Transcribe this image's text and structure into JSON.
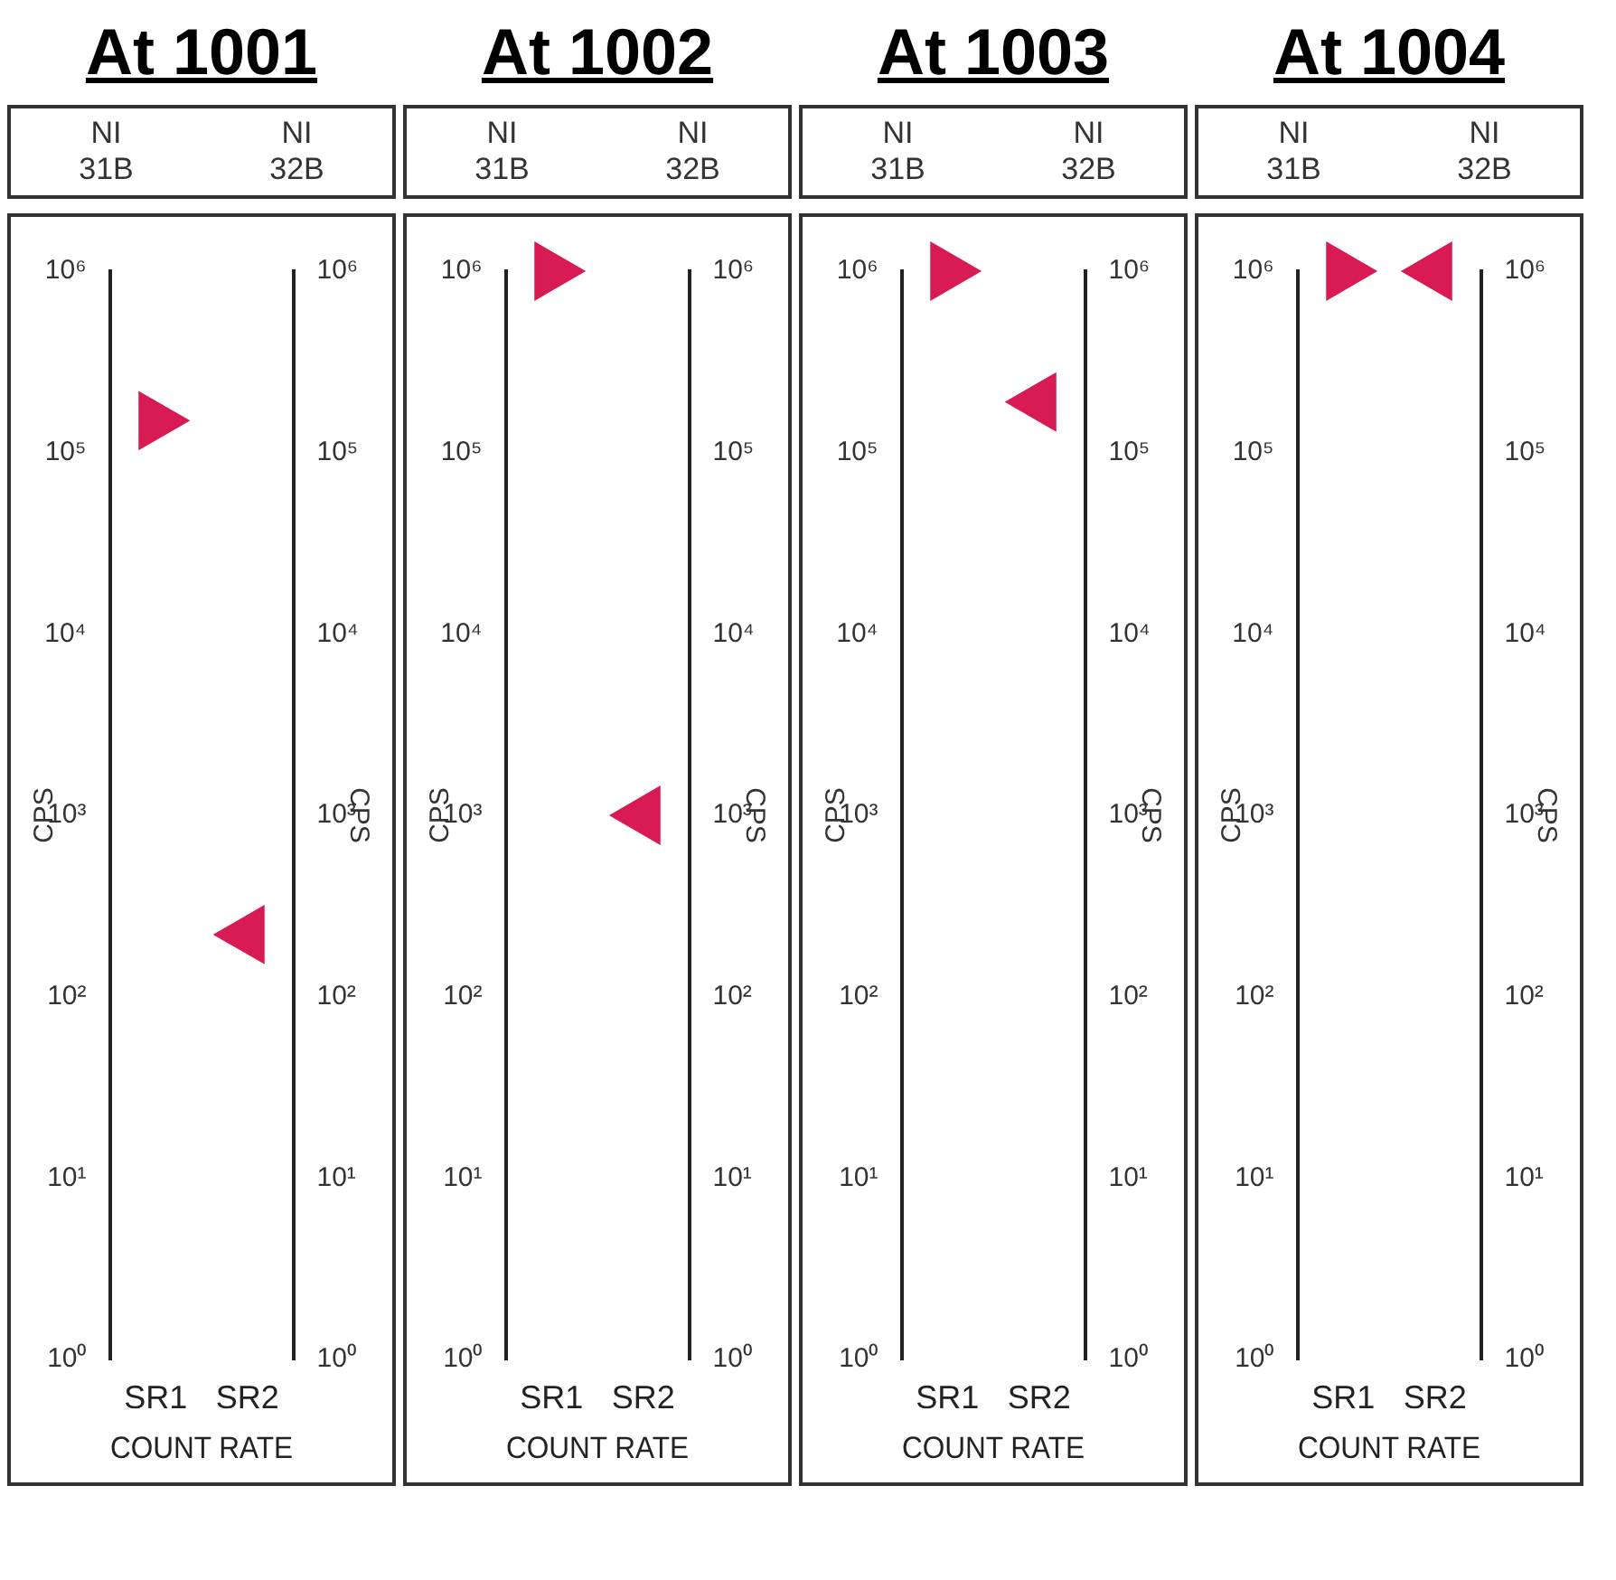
{
  "chart_data": [
    {
      "type": "scatter",
      "title": "At 1001",
      "annotations": [
        "NI 31B",
        "NI 32B"
      ],
      "categories": [
        "SR1",
        "SR2"
      ],
      "xlabel": "COUNT RATE",
      "ylabel": "CPS",
      "y2label": "CPS",
      "log": true,
      "ylim": [
        1,
        1000000
      ],
      "yticks": [
        {
          "value": 1,
          "label": "10⁰"
        },
        {
          "value": 10,
          "label": "10¹"
        },
        {
          "value": 100,
          "label": "10²"
        },
        {
          "value": 1000,
          "label": "10³"
        },
        {
          "value": 10000,
          "label": "10⁴"
        },
        {
          "value": 100000,
          "label": "10⁵"
        },
        {
          "value": 1000000,
          "label": "10⁶"
        }
      ],
      "marker": "triangle",
      "series": [
        {
          "color": "#d81b52",
          "values": [
            150000,
            220
          ]
        }
      ]
    },
    {
      "type": "scatter",
      "title": "At 1002",
      "annotations": [
        "NI 31B",
        "NI 32B"
      ],
      "categories": [
        "SR1",
        "SR2"
      ],
      "xlabel": "COUNT RATE",
      "ylabel": "CPS",
      "y2label": "CPS",
      "log": true,
      "ylim": [
        1,
        1000000
      ],
      "yticks": [
        {
          "value": 1,
          "label": "10⁰"
        },
        {
          "value": 10,
          "label": "10¹"
        },
        {
          "value": 100,
          "label": "10²"
        },
        {
          "value": 1000,
          "label": "10³"
        },
        {
          "value": 10000,
          "label": "10⁴"
        },
        {
          "value": 100000,
          "label": "10⁵"
        },
        {
          "value": 1000000,
          "label": "10⁶"
        }
      ],
      "marker": "triangle",
      "series": [
        {
          "color": "#d81b52",
          "values": [
            1000000,
            1000
          ]
        }
      ]
    },
    {
      "type": "scatter",
      "title": "At 1003",
      "annotations": [
        "NI 31B",
        "NI 32B"
      ],
      "categories": [
        "SR1",
        "SR2"
      ],
      "xlabel": "COUNT RATE",
      "ylabel": "CPS",
      "y2label": "CPS",
      "log": true,
      "ylim": [
        1,
        1000000
      ],
      "yticks": [
        {
          "value": 1,
          "label": "10⁰"
        },
        {
          "value": 10,
          "label": "10¹"
        },
        {
          "value": 100,
          "label": "10²"
        },
        {
          "value": 1000,
          "label": "10³"
        },
        {
          "value": 10000,
          "label": "10⁴"
        },
        {
          "value": 100000,
          "label": "10⁵"
        },
        {
          "value": 1000000,
          "label": "10⁶"
        }
      ],
      "marker": "triangle",
      "series": [
        {
          "color": "#d81b52",
          "values": [
            1000000,
            190000
          ]
        }
      ]
    },
    {
      "type": "scatter",
      "title": "At 1004",
      "annotations": [
        "NI 31B",
        "NI 32B"
      ],
      "categories": [
        "SR1",
        "SR2"
      ],
      "xlabel": "COUNT RATE",
      "ylabel": "CPS",
      "y2label": "CPS",
      "log": true,
      "ylim": [
        1,
        1000000
      ],
      "yticks": [
        {
          "value": 1,
          "label": "10⁰"
        },
        {
          "value": 10,
          "label": "10¹"
        },
        {
          "value": 100,
          "label": "10²"
        },
        {
          "value": 1000,
          "label": "10³"
        },
        {
          "value": 10000,
          "label": "10⁴"
        },
        {
          "value": 100000,
          "label": "10⁵"
        },
        {
          "value": 1000000,
          "label": "10⁶"
        }
      ],
      "marker": "triangle",
      "series": [
        {
          "color": "#d81b52",
          "values": [
            1000000,
            1000000
          ]
        }
      ]
    }
  ]
}
